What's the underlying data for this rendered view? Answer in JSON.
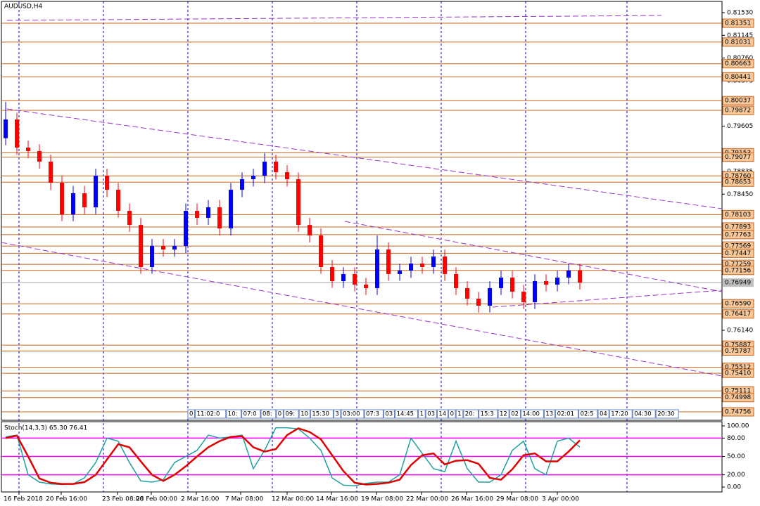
{
  "chart_data": {
    "type": "candlestick",
    "title": "AUDUSD,H4",
    "x_labels": [
      "16 Feb 2018",
      "20 Feb 16:00",
      "23 Feb 08:00",
      "28 Feb 00:00",
      "2 Mar 16:00",
      "7 Mar 08:00",
      "12 Mar 00:00",
      "14 Mar 16:00",
      "19 Mar 08:00",
      "22 Mar 00:00",
      "26 Mar 16:00",
      "29 Mar 08:00",
      "3 Apr 00:00"
    ],
    "open": [
      0.794,
      0.79717,
      0.7924,
      0.79181,
      0.79002,
      0.78644,
      0.78107,
      0.78465,
      0.78227,
      0.78763,
      0.78525,
      0.78167,
      0.77928,
      0.77213,
      0.77571,
      0.77511,
      0.77571,
      0.78167,
      0.78048,
      0.78227,
      0.77869,
      0.78525,
      0.78704,
      0.78763,
      0.79002,
      0.78823,
      0.78704,
      0.77928,
      0.77749,
      0.77213,
      0.76974,
      0.77094,
      0.76915,
      0.76855,
      0.77511,
      0.77094,
      0.77153,
      0.77272,
      0.77213,
      0.77392,
      0.77094,
      0.76855,
      0.76676,
      0.76557,
      0.76855,
      0.77034,
      0.76795,
      0.76617,
      0.76974,
      0.76915,
      0.77034,
      0.77153
    ],
    "high": [
      0.80015,
      0.7983,
      0.7936,
      0.793,
      0.7912,
      0.7876,
      0.7859,
      0.7859,
      0.7888,
      0.7888,
      0.7864,
      0.7829,
      0.7805,
      0.7769,
      0.7769,
      0.7769,
      0.7829,
      0.7829,
      0.7835,
      0.7835,
      0.7864,
      0.7882,
      0.7888,
      0.7915,
      0.7912,
      0.7894,
      0.7882,
      0.7805,
      0.7787,
      0.7733,
      0.7721,
      0.7721,
      0.7703,
      0.7775,
      0.7763,
      0.7727,
      0.7739,
      0.7739,
      0.7751,
      0.7751,
      0.7721,
      0.7697,
      0.7679,
      0.7697,
      0.7715,
      0.7715,
      0.7691,
      0.7709,
      0.7709,
      0.7715,
      0.7727,
      0.7727
    ],
    "low": [
      0.7928,
      0.7912,
      0.7906,
      0.7888,
      0.7852,
      0.7799,
      0.7799,
      0.7811,
      0.7811,
      0.784,
      0.7805,
      0.7781,
      0.771,
      0.771,
      0.7739,
      0.7739,
      0.7745,
      0.7793,
      0.7793,
      0.7775,
      0.7775,
      0.784,
      0.7858,
      0.7864,
      0.787,
      0.7858,
      0.7781,
      0.7763,
      0.771,
      0.7686,
      0.7686,
      0.768,
      0.7674,
      0.7674,
      0.7698,
      0.7698,
      0.7703,
      0.771,
      0.771,
      0.7698,
      0.7674,
      0.7656,
      0.7644,
      0.7644,
      0.7674,
      0.7668,
      0.765,
      0.765,
      0.768,
      0.768,
      0.7692,
      0.7683
    ],
    "close": [
      0.79717,
      0.7924,
      0.79181,
      0.79002,
      0.78644,
      0.78107,
      0.78465,
      0.78227,
      0.78763,
      0.78525,
      0.78167,
      0.77928,
      0.77213,
      0.77571,
      0.77511,
      0.77571,
      0.78167,
      0.78048,
      0.78227,
      0.77869,
      0.78525,
      0.78704,
      0.78763,
      0.79002,
      0.78823,
      0.78704,
      0.77928,
      0.77749,
      0.77213,
      0.76974,
      0.77094,
      0.76915,
      0.76855,
      0.77511,
      0.77094,
      0.77153,
      0.77272,
      0.77213,
      0.77392,
      0.77094,
      0.76855,
      0.76676,
      0.76557,
      0.76855,
      0.77034,
      0.76795,
      0.76617,
      0.76974,
      0.76915,
      0.77034,
      0.77153,
      0.76949
    ],
    "up_color": "#0000ff",
    "down_color": "#ff0000",
    "ylim": [
      0.74613,
      0.81685
    ],
    "yticks": [
      {
        "value": 0.8153,
        "label": "0.81530"
      },
      0.81145,
      {
        "value": 0.8076,
        "label": "0.80760"
      },
      0.80375,
      0.79605,
      0.78835,
      {
        "value": 0.7845,
        "label": "0.78450"
      },
      {
        "value": 0.7614,
        "label": "0.76140"
      }
    ],
    "levels": [
      0.81351,
      0.81031,
      0.80663,
      0.80441,
      0.80037,
      0.79872,
      0.79153,
      0.79077,
      {
        "value": 0.7876,
        "label": "0.78760"
      },
      0.78653,
      0.78103,
      0.77893,
      0.77763,
      0.77569,
      0.77447,
      0.77259,
      0.77156,
      {
        "value": 0.7659,
        "label": "0.76590"
      },
      0.76417,
      0.75887,
      0.75787,
      0.75512,
      {
        "value": 0.7541,
        "label": "0.75410"
      },
      0.75111,
      0.74998,
      0.74756
    ],
    "level_color": "#c8641e",
    "current_price": 0.76949,
    "time_marks": [
      "0",
      "11:02:0",
      "10:",
      "07:0",
      "08:",
      "0",
      "09:",
      "10",
      "15:30",
      "3",
      "03:00",
      "07:3",
      "03",
      "14:45",
      "1",
      "03",
      "14",
      "0",
      "1",
      "20:",
      "15:3",
      "12",
      "02",
      "14:00",
      "13",
      "02:01",
      "02:5",
      "04",
      "17:20",
      "04:30",
      "20:30"
    ],
    "stoch": {
      "label": "Stoch(14,3,3) 65.30 76.41",
      "ylim": [
        0,
        100
      ],
      "yticks": [
        {
          "value": 100,
          "label": "100.00"
        },
        {
          "value": 80,
          "label": "80.00"
        },
        {
          "value": 50,
          "label": "50.00"
        },
        {
          "value": 20,
          "label": "20.00"
        },
        {
          "value": 0,
          "label": "0.00"
        }
      ],
      "levels": [
        80,
        50,
        20
      ],
      "level_color": "#ff00ff",
      "series": [
        {
          "color": "#20a0a0",
          "values": [
            82,
            85,
            20,
            8,
            5,
            4,
            5,
            15,
            40,
            80,
            75,
            40,
            10,
            8,
            12,
            40,
            50,
            60,
            85,
            80,
            82,
            85,
            30,
            60,
            97,
            97,
            95,
            80,
            60,
            15,
            3,
            2,
            6,
            8,
            8,
            20,
            80,
            55,
            30,
            25,
            75,
            30,
            8,
            8,
            20,
            60,
            75,
            30,
            20,
            75,
            80,
            65.3
          ]
        },
        {
          "color": "#e00000",
          "values": [
            80,
            84,
            50,
            14,
            7,
            5,
            5,
            8,
            20,
            45,
            70,
            65,
            42,
            20,
            10,
            20,
            34,
            50,
            65,
            75,
            82,
            83,
            65,
            58,
            62,
            85,
            96,
            90,
            78,
            52,
            26,
            7,
            4,
            5,
            7,
            12,
            36,
            52,
            55,
            37,
            43,
            44,
            38,
            15,
            12,
            29,
            52,
            55,
            42,
            42,
            58,
            76.41
          ]
        }
      ]
    }
  }
}
